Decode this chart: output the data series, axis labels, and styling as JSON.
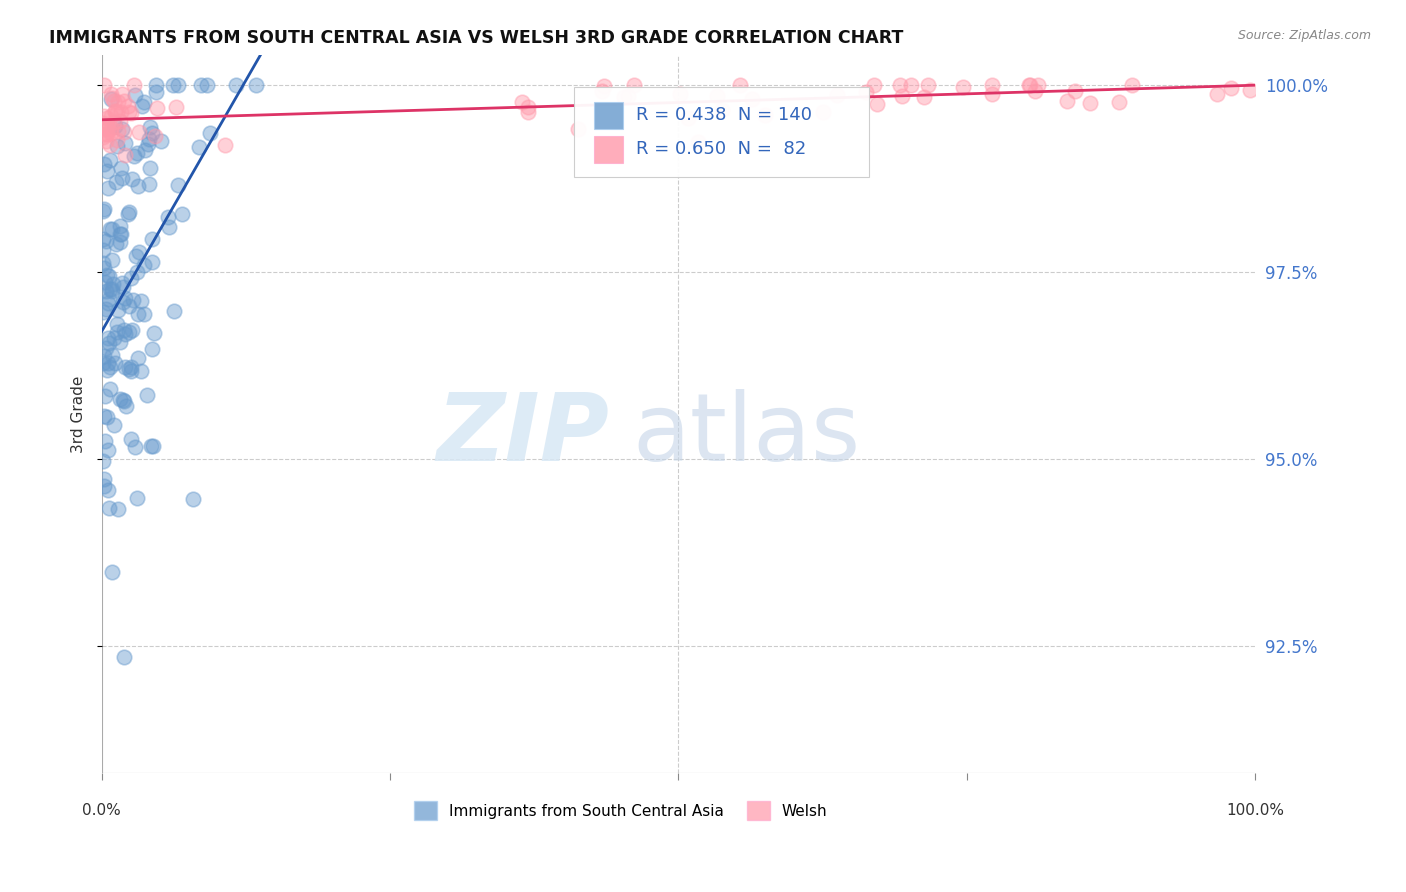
{
  "title": "IMMIGRANTS FROM SOUTH CENTRAL ASIA VS WELSH 3RD GRADE CORRELATION CHART",
  "source": "Source: ZipAtlas.com",
  "ylabel": "3rd Grade",
  "ytick_labels": [
    "92.5%",
    "95.0%",
    "97.5%",
    "100.0%"
  ],
  "ytick_values": [
    0.925,
    0.95,
    0.975,
    1.0
  ],
  "legend_blue_label": "Immigrants from South Central Asia",
  "legend_pink_label": "Welsh",
  "blue_R": 0.438,
  "blue_N": 140,
  "pink_R": 0.65,
  "pink_N": 82,
  "blue_color": "#6699CC",
  "pink_color": "#FF99AA",
  "blue_line_color": "#2255AA",
  "pink_line_color": "#DD3366",
  "watermark_zip": "ZIP",
  "watermark_atlas": "atlas",
  "background_color": "#FFFFFF",
  "grid_color": "#CCCCCC",
  "ylim_min": 0.908,
  "ylim_max": 1.004,
  "xlim_min": 0.0,
  "xlim_max": 1.0
}
